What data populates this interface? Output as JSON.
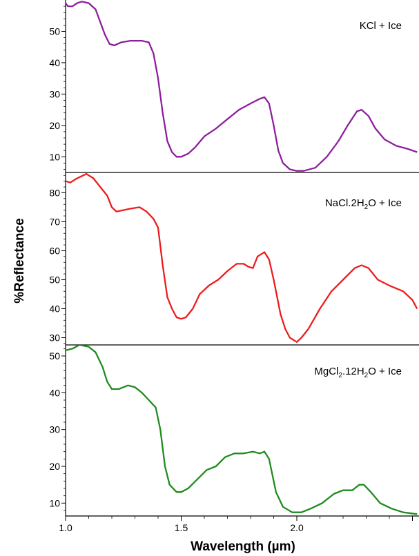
{
  "chart_data": {
    "type": "line",
    "xlabel": "Wavelength (µm)",
    "ylabel": "%Reflectance",
    "xlim": [
      1.0,
      2.5
    ],
    "x_ticks": [
      "1.0",
      "1.5",
      "2.0"
    ],
    "x_tick_values": [
      1.0,
      1.5,
      2.0
    ],
    "grid": false,
    "panels": [
      {
        "series_name": "KCl + Ice",
        "label_segments": [
          {
            "t": "KCl + Ice",
            "sub": false
          }
        ],
        "color": "#8e1e9e",
        "ylim": [
          5,
          60
        ],
        "y_ticks": [
          10,
          20,
          30,
          40,
          50
        ],
        "points": [
          [
            1.0,
            59
          ],
          [
            1.01,
            58
          ],
          [
            1.03,
            58
          ],
          [
            1.05,
            59
          ],
          [
            1.07,
            59.5
          ],
          [
            1.1,
            59
          ],
          [
            1.13,
            57
          ],
          [
            1.15,
            53
          ],
          [
            1.17,
            49
          ],
          [
            1.19,
            46
          ],
          [
            1.21,
            45.5
          ],
          [
            1.24,
            46.5
          ],
          [
            1.28,
            47
          ],
          [
            1.33,
            47
          ],
          [
            1.36,
            46.5
          ],
          [
            1.38,
            43
          ],
          [
            1.4,
            35
          ],
          [
            1.42,
            24
          ],
          [
            1.44,
            15
          ],
          [
            1.46,
            11.5
          ],
          [
            1.48,
            10
          ],
          [
            1.5,
            10
          ],
          [
            1.53,
            11
          ],
          [
            1.56,
            13
          ],
          [
            1.6,
            16.5
          ],
          [
            1.65,
            19
          ],
          [
            1.7,
            22
          ],
          [
            1.75,
            25
          ],
          [
            1.8,
            27
          ],
          [
            1.84,
            28.5
          ],
          [
            1.86,
            29
          ],
          [
            1.88,
            27
          ],
          [
            1.9,
            20
          ],
          [
            1.92,
            12
          ],
          [
            1.94,
            8
          ],
          [
            1.97,
            6
          ],
          [
            2.0,
            5.5
          ],
          [
            2.03,
            5.5
          ],
          [
            2.08,
            6.5
          ],
          [
            2.13,
            10
          ],
          [
            2.18,
            15
          ],
          [
            2.22,
            20
          ],
          [
            2.26,
            24.5
          ],
          [
            2.28,
            25
          ],
          [
            2.31,
            23
          ],
          [
            2.34,
            19
          ],
          [
            2.38,
            15.5
          ],
          [
            2.43,
            13.5
          ],
          [
            2.48,
            12.5
          ],
          [
            2.52,
            11.5
          ]
        ]
      },
      {
        "series_name": "NaCl.2H2O + Ice",
        "label_segments": [
          {
            "t": "NaCl.2H",
            "sub": false
          },
          {
            "t": "2",
            "sub": true
          },
          {
            "t": "O + Ice",
            "sub": false
          }
        ],
        "color": "#ee1c1c",
        "ylim": [
          27.5,
          87
        ],
        "y_ticks": [
          30,
          40,
          50,
          60,
          70,
          80
        ],
        "points": [
          [
            1.0,
            84
          ],
          [
            1.02,
            83.5
          ],
          [
            1.05,
            85
          ],
          [
            1.09,
            86.5
          ],
          [
            1.12,
            85
          ],
          [
            1.15,
            82
          ],
          [
            1.18,
            79
          ],
          [
            1.2,
            75
          ],
          [
            1.22,
            73.5
          ],
          [
            1.25,
            74
          ],
          [
            1.28,
            74.5
          ],
          [
            1.32,
            75
          ],
          [
            1.35,
            73.5
          ],
          [
            1.38,
            71
          ],
          [
            1.4,
            68
          ],
          [
            1.42,
            55
          ],
          [
            1.44,
            44
          ],
          [
            1.46,
            40
          ],
          [
            1.48,
            37
          ],
          [
            1.5,
            36.5
          ],
          [
            1.52,
            37
          ],
          [
            1.55,
            40
          ],
          [
            1.58,
            45
          ],
          [
            1.62,
            48
          ],
          [
            1.66,
            50
          ],
          [
            1.7,
            53
          ],
          [
            1.74,
            55.5
          ],
          [
            1.77,
            55.5
          ],
          [
            1.79,
            54.5
          ],
          [
            1.81,
            54
          ],
          [
            1.83,
            58
          ],
          [
            1.86,
            59.5
          ],
          [
            1.88,
            57
          ],
          [
            1.9,
            50
          ],
          [
            1.93,
            38
          ],
          [
            1.95,
            33
          ],
          [
            1.97,
            30
          ],
          [
            1.99,
            29
          ],
          [
            2.0,
            28.5
          ],
          [
            2.02,
            30
          ],
          [
            2.05,
            33
          ],
          [
            2.1,
            40
          ],
          [
            2.15,
            46
          ],
          [
            2.2,
            50
          ],
          [
            2.25,
            54
          ],
          [
            2.28,
            55
          ],
          [
            2.31,
            54
          ],
          [
            2.35,
            50
          ],
          [
            2.4,
            48
          ],
          [
            2.46,
            46
          ],
          [
            2.5,
            43
          ],
          [
            2.52,
            40
          ]
        ]
      },
      {
        "series_name": "MgCl2.12H2O + Ice",
        "label_segments": [
          {
            "t": "MgCl",
            "sub": false
          },
          {
            "t": "2",
            "sub": true
          },
          {
            "t": ".12H",
            "sub": false
          },
          {
            "t": "2",
            "sub": true
          },
          {
            "t": "O + Ice",
            "sub": false
          }
        ],
        "color": "#1e8c1e",
        "ylim": [
          6.5,
          53
        ],
        "y_ticks": [
          10,
          20,
          30,
          40,
          50
        ],
        "points": [
          [
            1.0,
            51.5
          ],
          [
            1.03,
            52
          ],
          [
            1.06,
            53
          ],
          [
            1.1,
            52.5
          ],
          [
            1.13,
            51
          ],
          [
            1.16,
            47
          ],
          [
            1.18,
            43
          ],
          [
            1.2,
            41
          ],
          [
            1.23,
            41
          ],
          [
            1.27,
            42
          ],
          [
            1.3,
            41.5
          ],
          [
            1.33,
            40
          ],
          [
            1.36,
            38
          ],
          [
            1.39,
            36
          ],
          [
            1.41,
            30
          ],
          [
            1.43,
            20
          ],
          [
            1.45,
            15
          ],
          [
            1.48,
            13
          ],
          [
            1.5,
            13
          ],
          [
            1.53,
            14
          ],
          [
            1.57,
            16.5
          ],
          [
            1.61,
            19
          ],
          [
            1.65,
            20
          ],
          [
            1.69,
            22.5
          ],
          [
            1.73,
            23.5
          ],
          [
            1.77,
            23.5
          ],
          [
            1.81,
            24
          ],
          [
            1.84,
            23.5
          ],
          [
            1.86,
            24
          ],
          [
            1.88,
            22
          ],
          [
            1.91,
            13
          ],
          [
            1.94,
            9
          ],
          [
            1.98,
            7.5
          ],
          [
            2.02,
            7.5
          ],
          [
            2.06,
            8.5
          ],
          [
            2.11,
            10
          ],
          [
            2.16,
            12.5
          ],
          [
            2.2,
            13.5
          ],
          [
            2.24,
            13.5
          ],
          [
            2.27,
            15
          ],
          [
            2.29,
            15
          ],
          [
            2.32,
            13
          ],
          [
            2.36,
            10
          ],
          [
            2.41,
            8.5
          ],
          [
            2.46,
            7.5
          ],
          [
            2.52,
            7
          ]
        ]
      }
    ]
  }
}
